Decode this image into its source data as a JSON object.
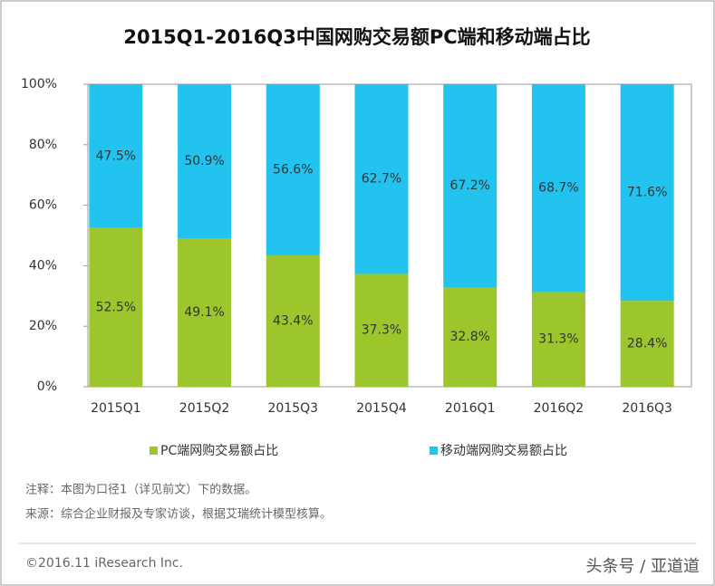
{
  "chart_data": {
    "type": "bar",
    "stacked": true,
    "title": "2015Q1-2016Q3中国网购交易额PC端和移动端占比",
    "categories": [
      "2015Q1",
      "2015Q2",
      "2015Q3",
      "2015Q4",
      "2016Q1",
      "2016Q2",
      "2016Q3"
    ],
    "series": [
      {
        "name": "PC端网购交易额占比",
        "color": "#9dc62d",
        "values": [
          52.5,
          49.1,
          43.4,
          37.3,
          32.8,
          31.3,
          28.4
        ],
        "value_labels": [
          "52.5%",
          "49.1%",
          "43.4%",
          "37.3%",
          "32.8%",
          "31.3%",
          "28.4%"
        ]
      },
      {
        "name": "移动端网购交易额占比",
        "color": "#22c3ee",
        "values": [
          47.5,
          50.9,
          56.6,
          62.7,
          67.2,
          68.7,
          71.6
        ],
        "value_labels": [
          "47.5%",
          "50.9%",
          "56.6%",
          "62.7%",
          "67.2%",
          "68.7%",
          "71.6%"
        ]
      }
    ],
    "ylim": [
      0,
      100
    ],
    "yticks": [
      {
        "value": 0,
        "label": "0%"
      },
      {
        "value": 20,
        "label": "20%"
      },
      {
        "value": 40,
        "label": "40%"
      },
      {
        "value": 60,
        "label": "60%"
      },
      {
        "value": 80,
        "label": "80%"
      },
      {
        "value": 100,
        "label": "100%"
      }
    ],
    "grid": false,
    "legend": "bottom",
    "notes": [
      "注释：本图为口径1（详见前文）下的数据。",
      "来源：综合企业财报及专家访谈，根据艾瑞统计模型核算。"
    ],
    "footer": "©2016.11 iResearch Inc.",
    "watermark": "头条号 / 亚道道"
  }
}
